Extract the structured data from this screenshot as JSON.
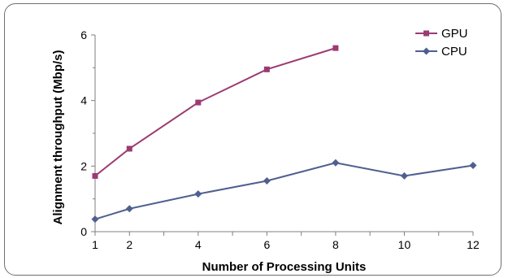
{
  "chart_data": {
    "type": "line",
    "title": "",
    "xlabel": "Number of Processing Units",
    "ylabel": "Alignment throughput (Mbp/s)",
    "xlim": [
      1,
      12
    ],
    "ylim": [
      0,
      6
    ],
    "x_ticks": [
      1,
      2,
      4,
      6,
      8,
      10,
      12
    ],
    "y_ticks": [
      0,
      2,
      4,
      6
    ],
    "grid": false,
    "legend_position": "top-right",
    "series": [
      {
        "name": "GPU",
        "color": "#9b3b72",
        "marker": "square",
        "x": [
          1,
          2,
          4,
          6,
          8
        ],
        "y": [
          1.7,
          2.53,
          3.94,
          4.95,
          5.6
        ]
      },
      {
        "name": "CPU",
        "color": "#4f5f8f",
        "marker": "diamond",
        "x": [
          1,
          2,
          4,
          6,
          8,
          10,
          12
        ],
        "y": [
          0.38,
          0.7,
          1.15,
          1.55,
          2.1,
          1.7,
          2.02
        ]
      }
    ]
  }
}
